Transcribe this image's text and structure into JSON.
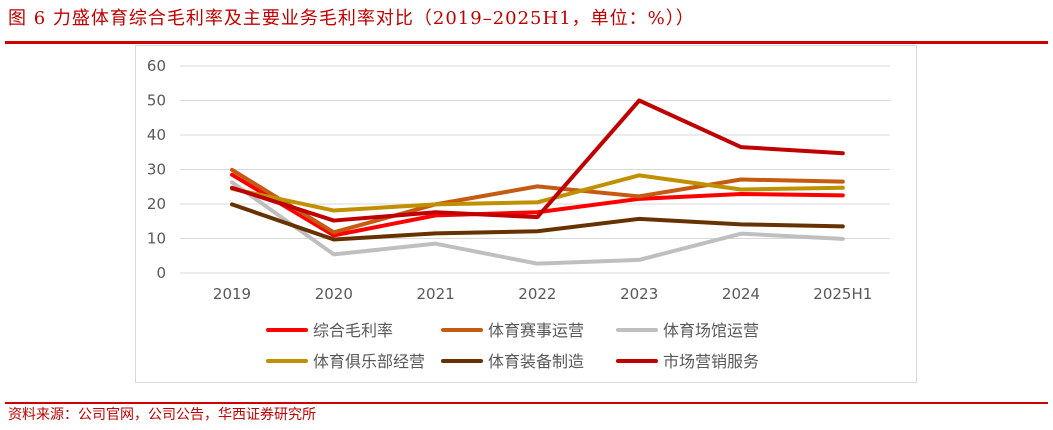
{
  "title": "图 6 力盛体育综合毛利率及主要业务毛利率对比（2019–2025H1，单位：%））",
  "source": "资料来源：公司官网，公司公告，华西证券研究所",
  "chart_data": {
    "type": "line",
    "categories": [
      "2019",
      "2020",
      "2021",
      "2022",
      "2023",
      "2024",
      "2025H1"
    ],
    "ylim": [
      0,
      60
    ],
    "yticks": [
      0,
      10,
      20,
      30,
      40,
      50,
      60
    ],
    "grid": true,
    "legend_position": "bottom",
    "series": [
      {
        "name": "综合毛利率",
        "color": "#FF0000",
        "values": [
          28.5,
          10.9,
          16.7,
          17.6,
          21.5,
          22.9,
          22.5
        ]
      },
      {
        "name": "体育赛事运营",
        "color": "#C55A11",
        "values": [
          29.9,
          11.8,
          19.9,
          25.1,
          22.2,
          27.1,
          26.5
        ]
      },
      {
        "name": "体育场馆运营",
        "color": "#BFBFBF",
        "values": [
          26.3,
          5.4,
          8.5,
          2.7,
          3.8,
          11.4,
          9.9
        ]
      },
      {
        "name": "体育俱乐部经营",
        "color": "#C09000",
        "values": [
          24.4,
          18.1,
          19.9,
          20.5,
          28.3,
          24.2,
          24.7
        ]
      },
      {
        "name": "体育装备制造",
        "color": "#663300",
        "values": [
          19.9,
          9.7,
          11.5,
          12.1,
          15.7,
          14.1,
          13.5
        ]
      },
      {
        "name": "市场营销服务",
        "color": "#C00000",
        "values": [
          24.7,
          15.2,
          17.6,
          16.2,
          50.0,
          36.5,
          34.7
        ]
      }
    ]
  }
}
